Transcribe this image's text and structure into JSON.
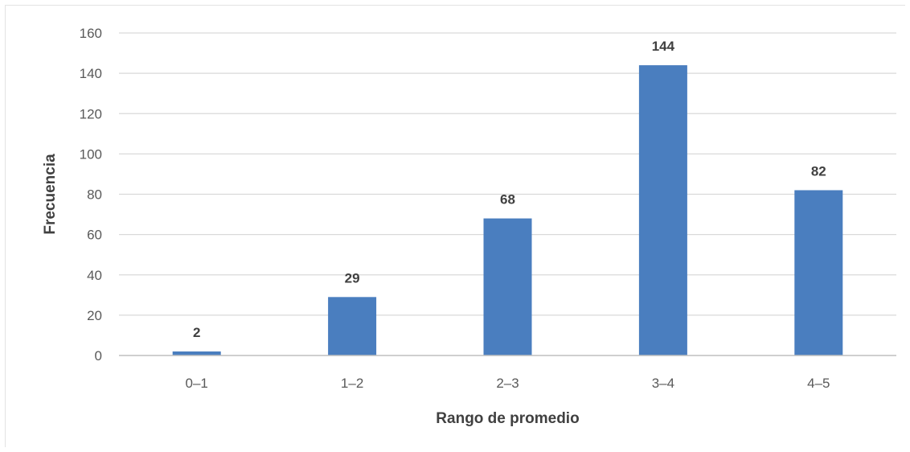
{
  "chart_data": {
    "type": "bar",
    "categories": [
      "0–1",
      "1–2",
      "2–3",
      "3–4",
      "4–5"
    ],
    "values": [
      2,
      29,
      68,
      144,
      82
    ],
    "data_labels": [
      "2",
      "29",
      "68",
      "144",
      "82"
    ],
    "xlabel": "Rango de promedio",
    "ylabel": "Frecuencia",
    "ylim": [
      0,
      160
    ],
    "yticks": [
      0,
      20,
      40,
      60,
      80,
      100,
      120,
      140,
      160
    ],
    "grid": true,
    "legend": "none",
    "colors": {
      "bar": "#4a7ebf",
      "gridline": "#d9d9d9",
      "axis": "#bfbfbf",
      "tick_text": "#595959",
      "title_text": "#404040"
    }
  }
}
